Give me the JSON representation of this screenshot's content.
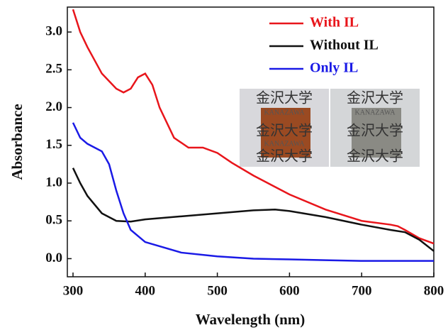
{
  "chart_data": {
    "type": "line",
    "xlabel": "Wavelength (nm)",
    "ylabel": "Absorbance",
    "xlim": [
      300,
      800
    ],
    "xticks": [
      300,
      400,
      500,
      600,
      700,
      800
    ],
    "ylim": [
      -0.24,
      3.33
    ],
    "yticks": [
      {
        "value": 0,
        "label": "0.0"
      },
      0.5,
      {
        "value": 1,
        "label": "1.0"
      },
      1.5,
      {
        "value": 2,
        "label": "2.0"
      },
      2.5,
      {
        "value": 3,
        "label": "3.0"
      }
    ],
    "legend": "upper right",
    "annotations": [
      "金沢大学",
      "KANAZAWA"
    ],
    "series": [
      {
        "name": "With IL",
        "color": "#e8151b",
        "x": [
          300,
          310,
          320,
          340,
          360,
          370,
          380,
          390,
          400,
          410,
          420,
          440,
          460,
          480,
          500,
          520,
          550,
          600,
          650,
          700,
          740,
          750,
          760,
          780,
          800
        ],
        "values": [
          3.3,
          3.0,
          2.8,
          2.45,
          2.25,
          2.2,
          2.25,
          2.4,
          2.45,
          2.3,
          2.0,
          1.6,
          1.47,
          1.47,
          1.4,
          1.27,
          1.1,
          0.85,
          0.65,
          0.5,
          0.45,
          0.43,
          0.38,
          0.27,
          0.2
        ]
      },
      {
        "name": "Without IL",
        "color": "#111111",
        "x": [
          300,
          310,
          320,
          340,
          360,
          380,
          400,
          450,
          500,
          550,
          580,
          600,
          650,
          700,
          740,
          760,
          780,
          800
        ],
        "values": [
          1.2,
          1.0,
          0.83,
          0.6,
          0.5,
          0.49,
          0.52,
          0.56,
          0.6,
          0.64,
          0.65,
          0.63,
          0.55,
          0.45,
          0.38,
          0.35,
          0.25,
          0.1
        ]
      },
      {
        "name": "Only IL",
        "color": "#1a1ae6",
        "x": [
          300,
          310,
          320,
          340,
          350,
          360,
          370,
          380,
          400,
          450,
          500,
          550,
          600,
          650,
          700,
          800
        ],
        "values": [
          1.8,
          1.6,
          1.52,
          1.42,
          1.25,
          0.9,
          0.6,
          0.38,
          0.22,
          0.08,
          0.03,
          0.0,
          -0.01,
          -0.02,
          -0.03,
          -0.03
        ]
      }
    ]
  }
}
